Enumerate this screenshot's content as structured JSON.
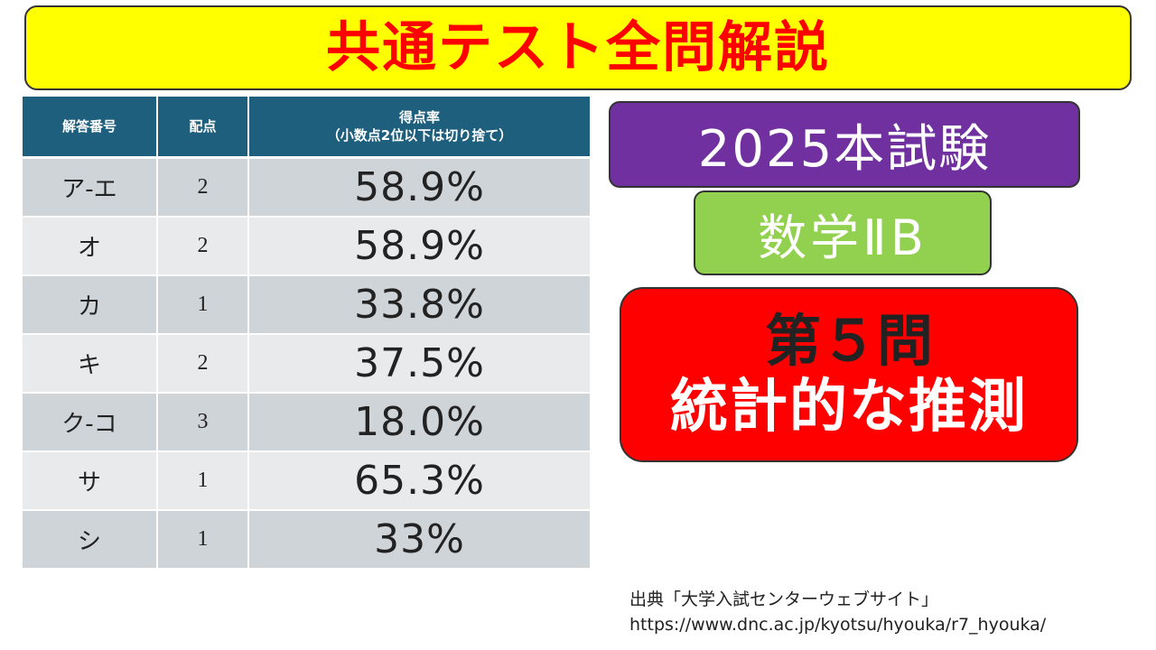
{
  "title": "共通テスト全問解説",
  "table": {
    "headers": {
      "answer_no": "解答番号",
      "points": "配点",
      "rate": "得点率",
      "rate_note": "（小数点2位以下は切り捨て）"
    },
    "rows": [
      {
        "no": "ア-エ",
        "points": "2",
        "rate": "58.9%"
      },
      {
        "no": "オ",
        "points": "2",
        "rate": "58.9%"
      },
      {
        "no": "カ",
        "points": "1",
        "rate": "33.8%"
      },
      {
        "no": "キ",
        "points": "2",
        "rate": "37.5%"
      },
      {
        "no": "ク-コ",
        "points": "3",
        "rate": "18.0%"
      },
      {
        "no": "サ",
        "points": "1",
        "rate": "65.3%"
      },
      {
        "no": "シ",
        "points": "1",
        "rate": "33%"
      }
    ]
  },
  "exam_label": "2025本試験",
  "subject_label": "数学ⅡB",
  "problem": {
    "number": "第５問",
    "topic": "統計的な推測"
  },
  "source": {
    "label": "出典「大学入試センターウェブサイト」",
    "url": "https://www.dnc.ac.jp/kyotsu/hyouka/r7_hyouka/"
  },
  "colors": {
    "title_bg": "#ffff00",
    "title_text": "#ff0000",
    "table_header": "#1e5f7d",
    "exam_box": "#7030a0",
    "subject_box": "#92d050",
    "problem_box": "#ff0000"
  }
}
